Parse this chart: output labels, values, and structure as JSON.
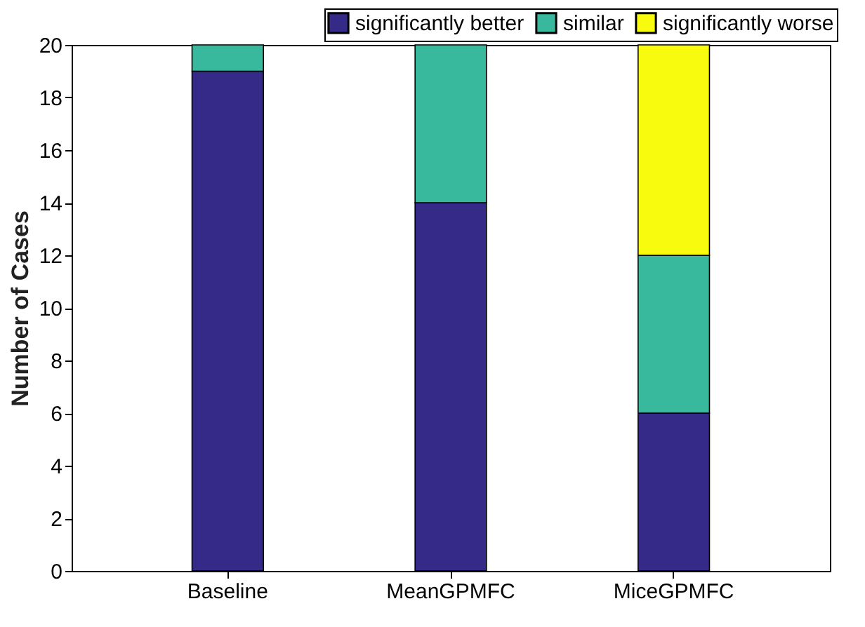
{
  "chart_data": {
    "type": "bar",
    "stacked": true,
    "ylabel": "Number of Cases",
    "categories": [
      "Baseline",
      "MeanGPMFC",
      "MiceGPMFC"
    ],
    "series": [
      {
        "name": "significantly better",
        "color": "#352a87",
        "values": [
          19,
          14,
          6
        ]
      },
      {
        "name": "similar",
        "color": "#38b99e",
        "values": [
          1,
          6,
          6
        ]
      },
      {
        "name": "significantly worse",
        "color": "#f9fb0e",
        "values": [
          0,
          0,
          8
        ]
      }
    ],
    "ylim": [
      0,
      20
    ],
    "yticks": [
      0,
      2,
      4,
      6,
      8,
      10,
      12,
      14,
      16,
      18,
      20
    ],
    "grid": false,
    "legend": "top right"
  }
}
